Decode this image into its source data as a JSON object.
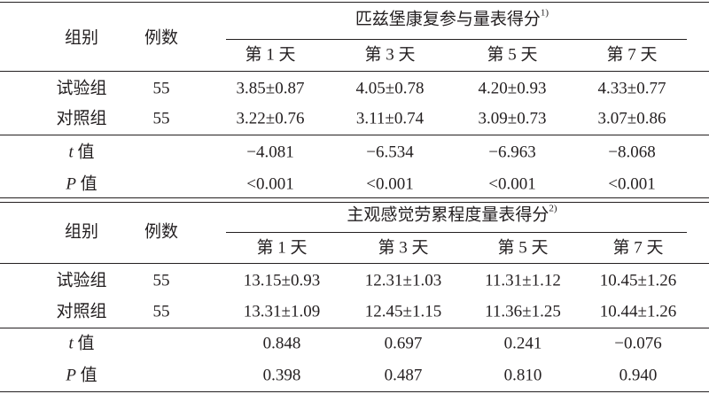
{
  "tables": [
    {
      "header": {
        "group": "组别",
        "count": "例数",
        "title": "匹兹堡康复参与量表得分",
        "note": "1)",
        "days": [
          "第 1 天",
          "第 3 天",
          "第 5 天",
          "第 7 天"
        ]
      },
      "rows": [
        {
          "group": "试验组",
          "count": "55",
          "cells": [
            "3.85±0.87",
            "4.05±0.78",
            "4.20±0.93",
            "4.33±0.77"
          ]
        },
        {
          "group": "对照组",
          "count": "55",
          "cells": [
            "3.22±0.76",
            "3.11±0.74",
            "3.09±0.73",
            "3.07±0.86"
          ]
        }
      ],
      "stats": [
        {
          "symbol": "t",
          "suffix": "值",
          "cells": [
            "−4.081",
            "−6.534",
            "−6.963",
            "−8.068"
          ]
        },
        {
          "symbol": "P",
          "suffix": "值",
          "cells": [
            "<0.001",
            "<0.001",
            "<0.001",
            "<0.001"
          ]
        }
      ]
    },
    {
      "header": {
        "group": "组别",
        "count": "例数",
        "title": "主观感觉劳累程度量表得分",
        "note": "2)",
        "days": [
          "第 1 天",
          "第 3 天",
          "第 5 天",
          "第 7 天"
        ]
      },
      "rows": [
        {
          "group": "试验组",
          "count": "55",
          "cells": [
            "13.15±0.93",
            "12.31±1.03",
            "11.31±1.12",
            "10.45±1.26"
          ]
        },
        {
          "group": "对照组",
          "count": "55",
          "cells": [
            "13.31±1.09",
            "12.45±1.15",
            "11.36±1.25",
            "10.44±1.26"
          ]
        }
      ],
      "stats": [
        {
          "symbol": "t",
          "suffix": "值",
          "cells": [
            "0.848",
            "0.697",
            "0.241",
            "−0.076"
          ]
        },
        {
          "symbol": "P",
          "suffix": "值",
          "cells": [
            "0.398",
            "0.487",
            "0.810",
            "0.940"
          ]
        }
      ]
    }
  ]
}
